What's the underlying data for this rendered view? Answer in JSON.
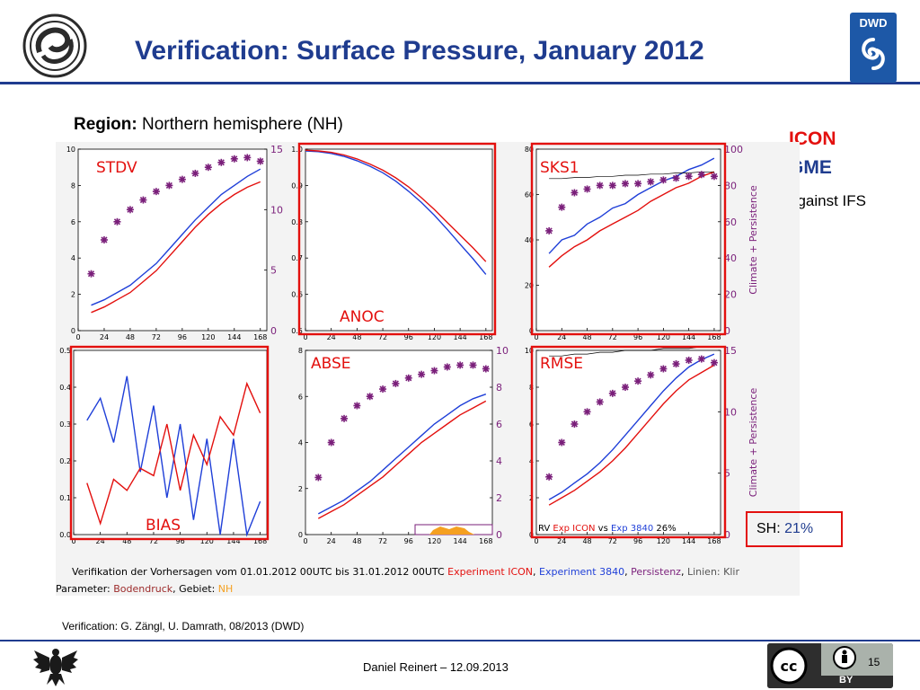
{
  "slide": {
    "title": "Verification: Surface Pressure, January 2012",
    "region_label": "Region:",
    "region_value": "Northern hemisphere (NH)",
    "legend_icon": "ICON",
    "legend_gme": "GME",
    "legend_against": "against IFS",
    "sh_label": "SH:",
    "sh_value": "21%",
    "footer_verification": "Verification: G. Zängl, U. Damrath, 08/2013 (DWD)",
    "presenter": "Daniel Reinert – 12.09.2013",
    "page_number": "15",
    "dwd_logo_text": "DWD",
    "cc_logo_text": "BY"
  },
  "colors": {
    "title_blue": "#1f3c8f",
    "icon_red": "#e3100e",
    "gme_blue": "#1f3c8f",
    "persistence_purple": "#7a1f7a",
    "highlight_red": "#e3100e",
    "dwd_blue": "#1d58a7",
    "nh_orange": "#f5a021"
  },
  "icons": {
    "left_logo": "dwd-swirl-logo-icon",
    "right_logo": "dwd-logo-icon",
    "eagle": "federal-eagle-icon",
    "license": "creative-commons-by-icon"
  },
  "caption": {
    "line1_prefix": "Verifikation der Vorhersagen vom 01.01.2012 00UTC bis 31.01.2012 00UTC",
    "line1_exp_icon": "Experiment ICON",
    "line1_exp_3840": "Experiment 3840",
    "line1_persistence": "Persistenz",
    "line1_suffix": "Linien: Klir",
    "line2_param_label": "Parameter:",
    "line2_param_value": "Bodendruck",
    "line2_gebiet_label": "Gebiet:",
    "line2_gebiet_value": "NH"
  },
  "chart_data": [
    {
      "type": "line",
      "label": "STDV",
      "x": [
        12,
        24,
        36,
        48,
        60,
        72,
        84,
        96,
        108,
        120,
        132,
        144,
        156,
        168
      ],
      "xticks": [
        "0",
        "24",
        "48",
        "72",
        "96",
        "120",
        "144",
        "168"
      ],
      "xlim": [
        0,
        174
      ],
      "ylim": [
        0,
        10
      ],
      "yticks": [
        "0",
        "2",
        "4",
        "6",
        "8",
        "10"
      ],
      "y2lim": [
        0,
        15
      ],
      "y2ticks": [
        "0",
        "5",
        "10",
        "15"
      ],
      "series": [
        {
          "color": "#1f3fd8",
          "values": [
            1.4,
            1.7,
            2.1,
            2.5,
            3.1,
            3.7,
            4.5,
            5.3,
            6.1,
            6.8,
            7.5,
            8.0,
            8.5,
            8.9
          ]
        },
        {
          "color": "#e3100e",
          "values": [
            1.0,
            1.3,
            1.7,
            2.1,
            2.7,
            3.3,
            4.1,
            4.9,
            5.7,
            6.4,
            7.0,
            7.5,
            7.9,
            8.2
          ]
        },
        {
          "color": "#7a1f7a",
          "markers": true,
          "axis": "right",
          "values": [
            4.7,
            7.5,
            9.0,
            10.0,
            10.8,
            11.5,
            12.0,
            12.5,
            13.0,
            13.5,
            13.9,
            14.2,
            14.3,
            14.0
          ]
        }
      ]
    },
    {
      "type": "line",
      "label": "ANOC",
      "x": [
        0,
        12,
        24,
        36,
        48,
        60,
        72,
        84,
        96,
        108,
        120,
        132,
        144,
        156,
        168
      ],
      "xticks": [
        "0",
        "24",
        "48",
        "72",
        "96",
        "120",
        "144",
        "168"
      ],
      "xlim": [
        0,
        174
      ],
      "ylim": [
        0.5,
        1.0
      ],
      "yticks": [
        "0.5",
        "0.6",
        "0.7",
        "0.8",
        "0.9",
        "1.0"
      ],
      "series": [
        {
          "color": "#1f3fd8",
          "values": [
            0.995,
            0.993,
            0.988,
            0.98,
            0.968,
            0.953,
            0.935,
            0.912,
            0.884,
            0.853,
            0.818,
            0.779,
            0.738,
            0.698,
            0.655
          ]
        },
        {
          "color": "#e3100e",
          "values": [
            0.997,
            0.995,
            0.991,
            0.984,
            0.973,
            0.959,
            0.942,
            0.921,
            0.896,
            0.866,
            0.834,
            0.798,
            0.763,
            0.728,
            0.69
          ]
        }
      ]
    },
    {
      "type": "line",
      "label": "SKS1",
      "x": [
        12,
        24,
        36,
        48,
        60,
        72,
        84,
        96,
        108,
        120,
        132,
        144,
        156,
        168
      ],
      "xticks": [
        "0",
        "24",
        "48",
        "72",
        "96",
        "120",
        "144",
        "168"
      ],
      "xlim": [
        0,
        174
      ],
      "ylim": [
        0,
        80
      ],
      "yticks": [
        "0",
        "20",
        "40",
        "60",
        "80"
      ],
      "y2lim": [
        0,
        100
      ],
      "y2ticks": [
        "0",
        "20",
        "40",
        "60",
        "80",
        "100"
      ],
      "y2label": "Climate + Persistence",
      "series": [
        {
          "color": "#1f3fd8",
          "values": [
            34,
            40,
            42,
            47,
            50,
            54,
            56,
            60,
            63,
            66,
            68,
            71,
            73,
            76
          ]
        },
        {
          "color": "#e3100e",
          "values": [
            28,
            33,
            37,
            40,
            44,
            47,
            50,
            53,
            57,
            60,
            63,
            65,
            68,
            70
          ]
        },
        {
          "color": "#000000",
          "values": [
            67,
            67,
            67.5,
            67.5,
            68,
            68,
            68.5,
            68.5,
            69,
            69,
            69.5,
            69.5,
            70,
            70
          ]
        },
        {
          "color": "#7a1f7a",
          "markers": true,
          "axis": "right",
          "values": [
            55,
            68,
            76,
            78,
            80,
            80,
            81,
            81,
            82,
            83,
            84,
            85,
            86,
            85
          ]
        }
      ]
    },
    {
      "type": "line",
      "label": "BIAS",
      "x": [
        12,
        24,
        36,
        48,
        60,
        72,
        84,
        96,
        108,
        120,
        132,
        144,
        156,
        168
      ],
      "xticks": [
        "0",
        "24",
        "48",
        "72",
        "96",
        "120",
        "144",
        "168"
      ],
      "xlim": [
        0,
        174
      ],
      "ylim": [
        0.0,
        0.5
      ],
      "yticks": [
        "0.0",
        "0.1",
        "0.2",
        "0.3",
        "0.4",
        "0.5"
      ],
      "series": [
        {
          "color": "#1f3fd8",
          "values": [
            0.31,
            0.37,
            0.25,
            0.43,
            0.17,
            0.35,
            0.1,
            0.3,
            0.04,
            0.26,
            0.0,
            0.26,
            0.0,
            0.09
          ]
        },
        {
          "color": "#e3100e",
          "values": [
            0.14,
            0.03,
            0.15,
            0.12,
            0.18,
            0.16,
            0.3,
            0.12,
            0.27,
            0.19,
            0.32,
            0.27,
            0.41,
            0.33
          ]
        }
      ]
    },
    {
      "type": "line",
      "label": "ABSE",
      "x": [
        12,
        24,
        36,
        48,
        60,
        72,
        84,
        96,
        108,
        120,
        132,
        144,
        156,
        168
      ],
      "xticks": [
        "0",
        "24",
        "48",
        "72",
        "96",
        "120",
        "144",
        "168"
      ],
      "xlim": [
        0,
        174
      ],
      "ylim": [
        0,
        8
      ],
      "yticks": [
        "0",
        "2",
        "4",
        "6",
        "8"
      ],
      "y2lim": [
        0,
        10
      ],
      "y2ticks": [
        "0",
        "2",
        "4",
        "6",
        "8",
        "10"
      ],
      "series": [
        {
          "color": "#1f3fd8",
          "values": [
            0.9,
            1.2,
            1.5,
            1.9,
            2.3,
            2.8,
            3.3,
            3.8,
            4.3,
            4.8,
            5.2,
            5.6,
            5.9,
            6.1
          ]
        },
        {
          "color": "#e3100e",
          "values": [
            0.7,
            1.0,
            1.3,
            1.7,
            2.1,
            2.5,
            3.0,
            3.5,
            4.0,
            4.4,
            4.8,
            5.2,
            5.5,
            5.8
          ]
        },
        {
          "color": "#7a1f7a",
          "markers": true,
          "axis": "right",
          "values": [
            3.1,
            5.0,
            6.3,
            7.0,
            7.5,
            7.9,
            8.2,
            8.5,
            8.7,
            8.9,
            9.1,
            9.2,
            9.2,
            9.0
          ]
        }
      ]
    },
    {
      "type": "line",
      "label": "RMSE",
      "x": [
        12,
        24,
        36,
        48,
        60,
        72,
        84,
        96,
        108,
        120,
        132,
        144,
        156,
        168
      ],
      "xticks": [
        "0",
        "24",
        "48",
        "72",
        "96",
        "120",
        "144",
        "168"
      ],
      "xlim": [
        0,
        174
      ],
      "ylim": [
        0,
        10
      ],
      "yticks": [
        "0",
        "2",
        "4",
        "6",
        "8",
        "10"
      ],
      "y2lim": [
        0,
        15
      ],
      "y2ticks": [
        "0",
        "5",
        "10",
        "15"
      ],
      "y2label": "Climate + Persistence",
      "series": [
        {
          "color": "#1f3fd8",
          "values": [
            1.9,
            2.3,
            2.8,
            3.3,
            3.9,
            4.6,
            5.4,
            6.2,
            7.0,
            7.8,
            8.5,
            9.1,
            9.5,
            9.8
          ]
        },
        {
          "color": "#e3100e",
          "values": [
            1.6,
            2.0,
            2.4,
            2.9,
            3.4,
            4.0,
            4.7,
            5.5,
            6.3,
            7.1,
            7.8,
            8.4,
            8.8,
            9.2
          ]
        },
        {
          "color": "#000000",
          "values": [
            9.7,
            9.7,
            9.8,
            9.8,
            9.9,
            9.9,
            10.0,
            10.0,
            10.0,
            10.1,
            10.1,
            10.1,
            10.2,
            10.2
          ]
        },
        {
          "color": "#7a1f7a",
          "markers": true,
          "axis": "right",
          "values": [
            4.7,
            7.5,
            9.0,
            10.0,
            10.8,
            11.5,
            12.0,
            12.5,
            13.0,
            13.5,
            13.9,
            14.2,
            14.3,
            14.0
          ]
        }
      ],
      "bottom_label": {
        "prefix": "RV",
        "exp_icon": "Exp ICON",
        "vs": "vs",
        "exp_3840": "Exp 3840",
        "value": "26%"
      }
    }
  ]
}
